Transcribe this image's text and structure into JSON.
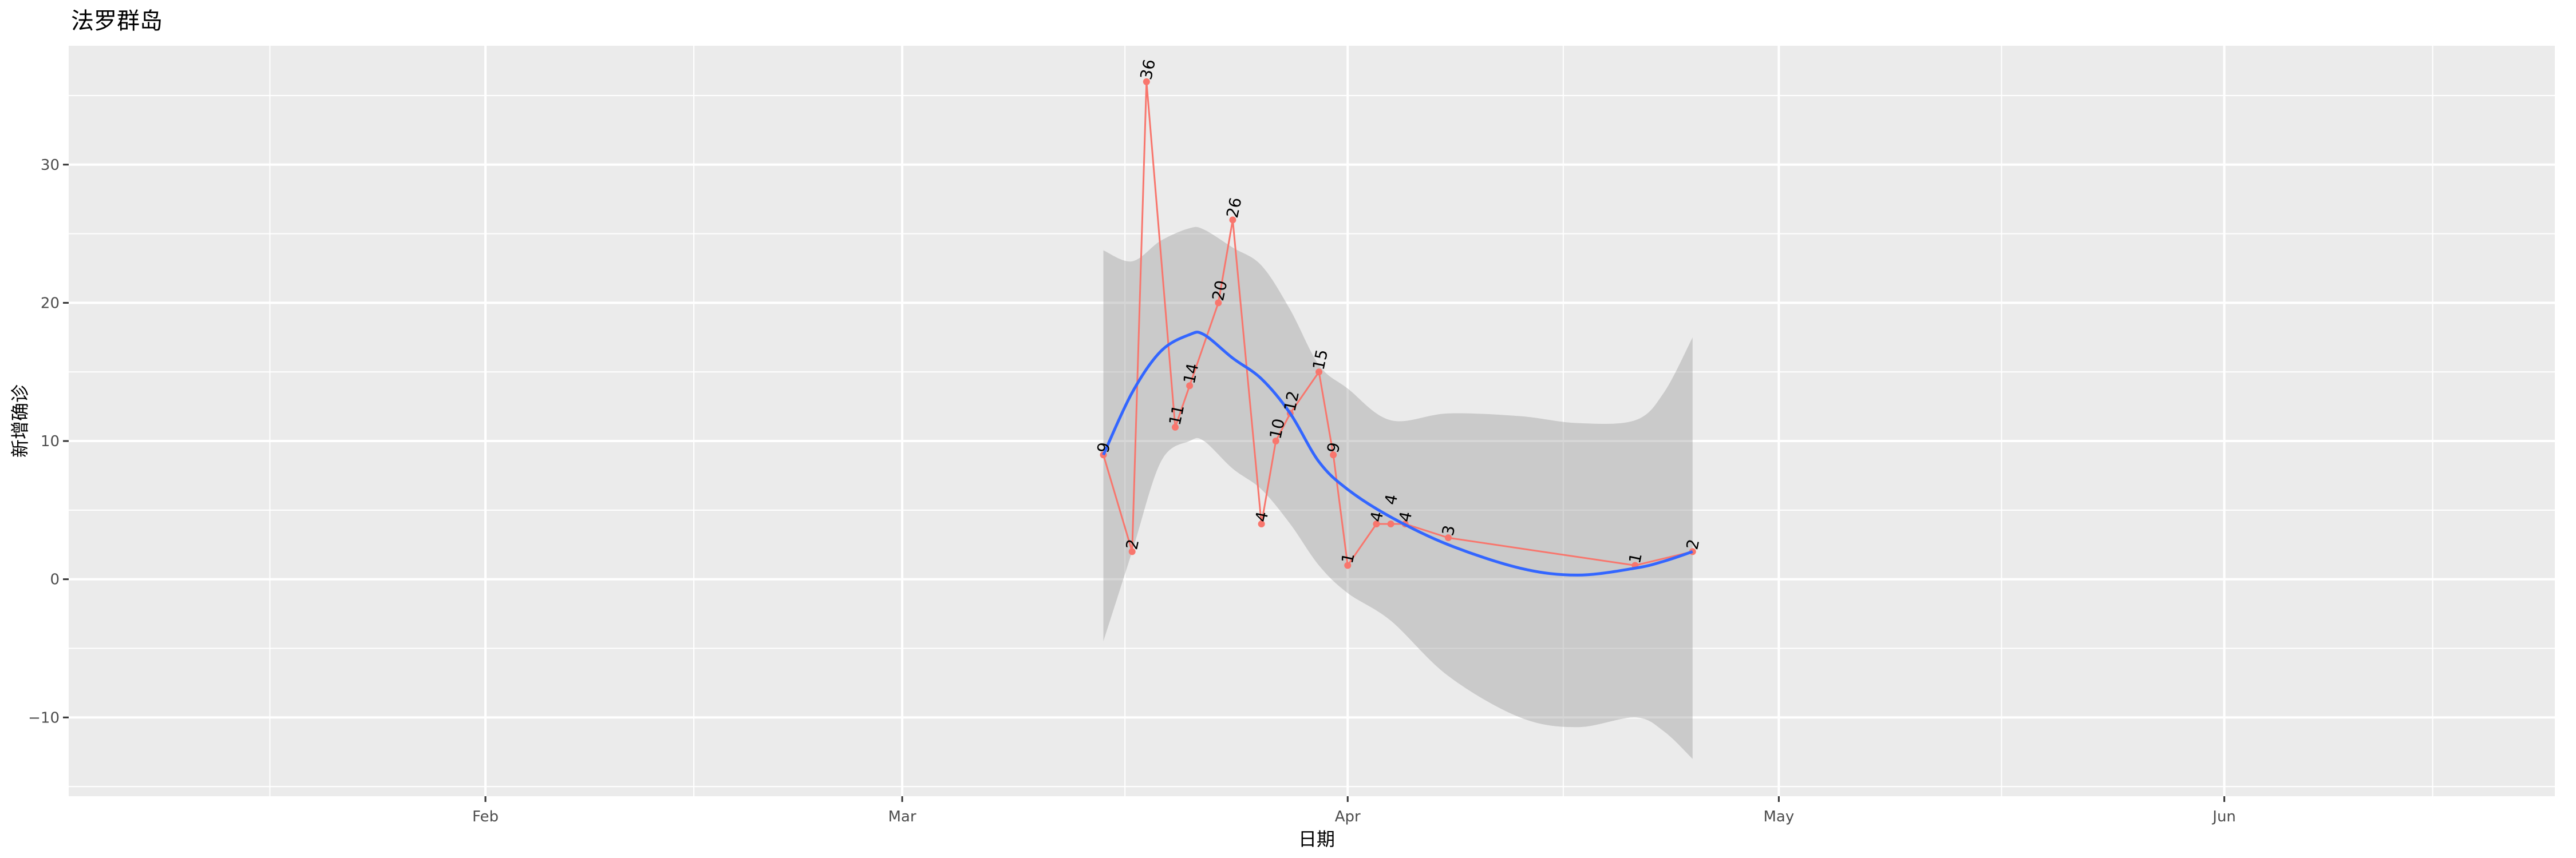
{
  "chart_data": {
    "type": "line",
    "title": "法罗群岛",
    "xlabel": "日期",
    "ylabel": "新增确诊",
    "xlim": [
      "2020-01-03",
      "2020-06-24"
    ],
    "ylim": [
      -15.7,
      38.6
    ],
    "x_ticks": [
      {
        "date": "2020-02-01",
        "label": "Feb"
      },
      {
        "date": "2020-03-01",
        "label": "Mar"
      },
      {
        "date": "2020-04-01",
        "label": "Apr"
      },
      {
        "date": "2020-05-01",
        "label": "May"
      },
      {
        "date": "2020-06-01",
        "label": "Jun"
      }
    ],
    "y_ticks": [
      -10,
      0,
      10,
      20,
      30
    ],
    "grid": true,
    "colors": {
      "panel": "#EBEBEB",
      "grid": "#FFFFFF",
      "points": "#F8766D",
      "smooth": "#3366FF",
      "ribbon": "#999999"
    },
    "series": [
      {
        "x": [
          "2020-03-15",
          "2020-03-17",
          "2020-03-18",
          "2020-03-20",
          "2020-03-21",
          "2020-03-23",
          "2020-03-24",
          "2020-03-26",
          "2020-03-27",
          "2020-03-28",
          "2020-03-30",
          "2020-03-31",
          "2020-04-01",
          "2020-04-03",
          "2020-04-04",
          "2020-04-05",
          "2020-04-08",
          "2020-04-21",
          "2020-04-25"
        ],
        "y": [
          9,
          2,
          36,
          11,
          14,
          20,
          26,
          4,
          10,
          12,
          15,
          9,
          1,
          4,
          4,
          4,
          3,
          1,
          2
        ]
      }
    ],
    "smooth": {
      "x": [
        "2020-03-15",
        "2020-03-17",
        "2020-03-19",
        "2020-03-21",
        "2020-03-22",
        "2020-03-24",
        "2020-03-26",
        "2020-03-28",
        "2020-03-30",
        "2020-04-01",
        "2020-04-04",
        "2020-04-08",
        "2020-04-13",
        "2020-04-17",
        "2020-04-21",
        "2020-04-23",
        "2020-04-25"
      ],
      "fit": [
        9,
        13.5,
        16.5,
        17.7,
        17.7,
        16,
        14.5,
        12,
        8.5,
        6.5,
        4.5,
        2.5,
        0.8,
        0.3,
        0.8,
        1.3,
        2
      ],
      "lo": [
        -4.5,
        2,
        8.5,
        10,
        10,
        8,
        6.5,
        4,
        1,
        -1,
        -3,
        -7,
        -10,
        -10.7,
        -10,
        -11,
        -13
      ],
      "hi": [
        23.8,
        23,
        24.5,
        25.4,
        25.3,
        24,
        22.7,
        19.5,
        15.5,
        13.8,
        11.5,
        12,
        11.8,
        11.3,
        11.5,
        13.5,
        17.5
      ]
    }
  }
}
